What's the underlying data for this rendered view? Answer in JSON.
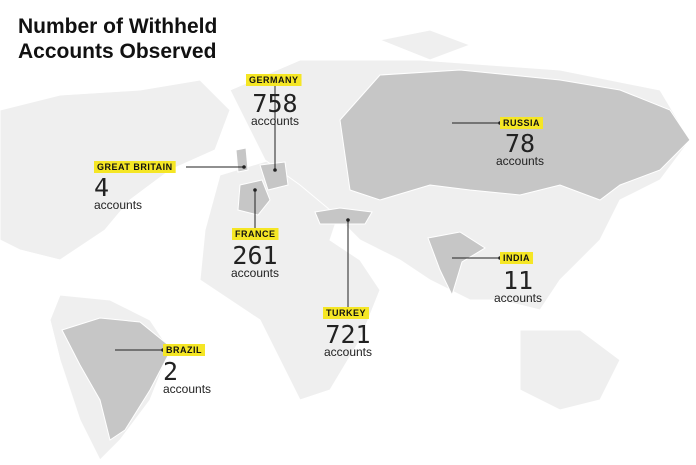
{
  "header": {
    "title_lines": [
      "Number of Withheld",
      "Accounts Observed"
    ]
  },
  "countries": [
    {
      "name": "GERMANY",
      "count": 758,
      "unit": "accounts"
    },
    {
      "name": "GREAT BRITAIN",
      "count": 4,
      "unit": "accounts"
    },
    {
      "name": "FRANCE",
      "count": 261,
      "unit": "accounts"
    },
    {
      "name": "RUSSIA",
      "count": 78,
      "unit": "accounts"
    },
    {
      "name": "INDIA",
      "count": 11,
      "unit": "accounts"
    },
    {
      "name": "TURKEY",
      "count": 721,
      "unit": "accounts"
    },
    {
      "name": "BRAZIL",
      "count": 2,
      "unit": "accounts"
    }
  ]
}
